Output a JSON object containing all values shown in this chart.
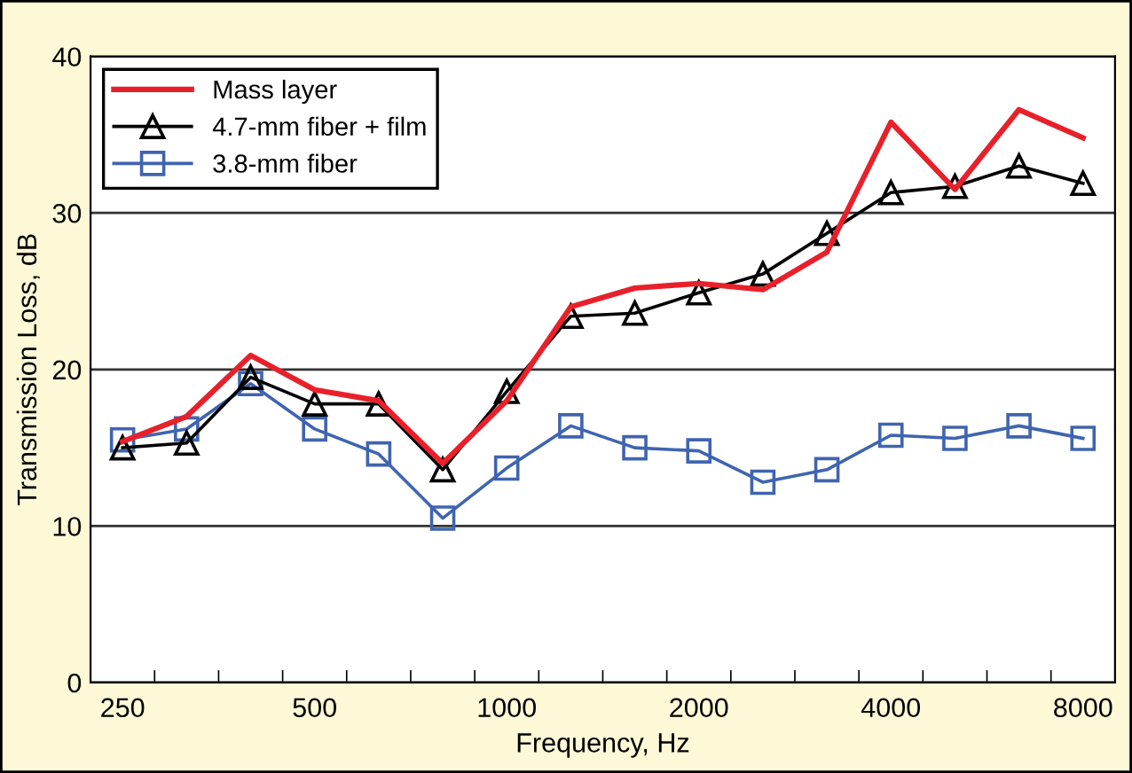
{
  "chart_data": {
    "type": "line",
    "xlabel": "Frequency, Hz",
    "ylabel": "Transmission Loss, dB",
    "categories": [
      "250",
      null,
      null,
      "500",
      null,
      null,
      "1000",
      null,
      null,
      "2000",
      null,
      null,
      "4000",
      null,
      null,
      "8000"
    ],
    "series": [
      {
        "name": "Mass layer",
        "color": "#e8202a",
        "marker": "none",
        "values": [
          15.4,
          17.0,
          20.9,
          18.7,
          18.0,
          14.0,
          18.0,
          24.0,
          25.2,
          25.5,
          25.1,
          27.5,
          35.8,
          31.5,
          36.6,
          34.8
        ]
      },
      {
        "name": "4.7-mm fiber + film",
        "color": "#000000",
        "marker": "triangle",
        "values": [
          15.0,
          15.3,
          19.5,
          17.8,
          17.8,
          13.6,
          18.6,
          23.4,
          23.6,
          24.9,
          26.1,
          28.7,
          31.3,
          31.7,
          33.0,
          31.9
        ]
      },
      {
        "name": "3.8-mm fiber",
        "color": "#3f64b0",
        "marker": "square",
        "values": [
          15.5,
          16.2,
          19.1,
          16.2,
          14.6,
          10.5,
          13.7,
          16.4,
          15.0,
          14.8,
          12.8,
          13.6,
          15.8,
          15.6,
          16.4,
          15.6
        ]
      }
    ],
    "ylim": [
      0,
      40
    ],
    "yticks": [
      0,
      10,
      20,
      30,
      40
    ],
    "grid": "y",
    "legend": "top left"
  }
}
